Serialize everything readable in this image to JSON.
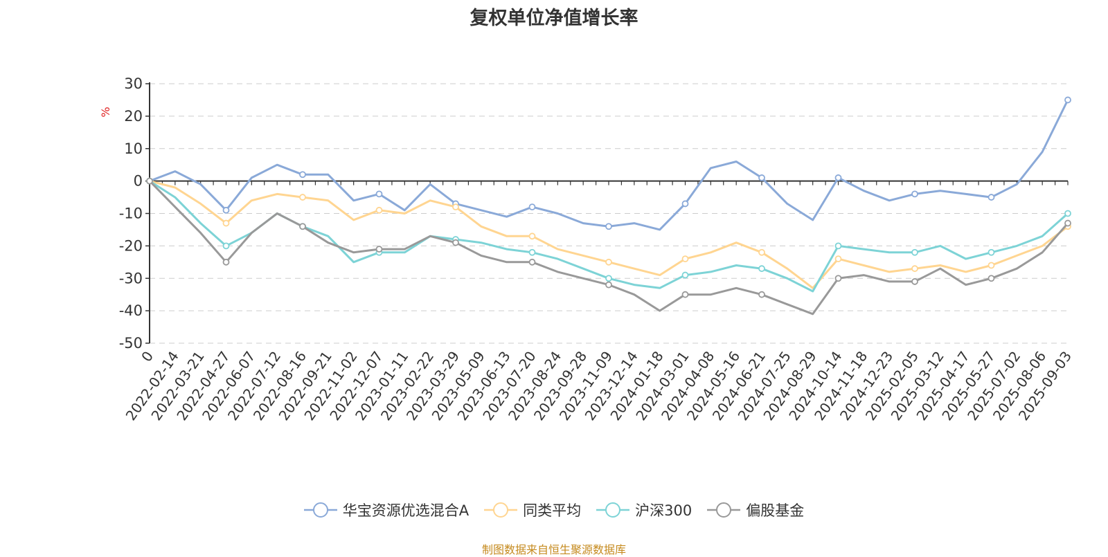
{
  "chart_data": {
    "type": "line",
    "title": "复权单位净值增长率",
    "ylabel": "%",
    "ylim": [
      -50,
      30
    ],
    "yticks": [
      30,
      20,
      10,
      0,
      -10,
      -20,
      -30,
      -40,
      -50
    ],
    "grid": true,
    "legend_position": "bottom",
    "x_tick_labels": [
      "0",
      "2022-02-14",
      "2022-03-21",
      "2022-04-27",
      "2022-06-07",
      "2022-07-12",
      "2022-08-16",
      "2022-09-21",
      "2022-11-02",
      "2022-12-07",
      "2023-01-11",
      "2023-02-22",
      "2023-03-29",
      "2023-05-09",
      "2023-06-13",
      "2023-07-20",
      "2023-08-24",
      "2023-09-28",
      "2023-11-09",
      "2023-12-14",
      "2024-01-18",
      "2024-03-01",
      "2024-04-08",
      "2024-05-16",
      "2024-06-21",
      "2024-07-25",
      "2024-08-29",
      "2024-10-14",
      "2024-11-18",
      "2024-12-23",
      "2025-02-05",
      "2025-03-12",
      "2025-04-17",
      "2025-05-27",
      "2025-07-02",
      "2025-08-06",
      "2025-09-03"
    ],
    "x": [
      "0",
      "2022-02-14",
      "2022-03-21",
      "2022-04-27",
      "2022-06-07",
      "2022-07-12",
      "2022-08-16",
      "2022-09-21",
      "2022-11-02",
      "2022-12-07",
      "2023-01-11",
      "2023-02-22",
      "2023-03-29",
      "2023-05-09",
      "2023-06-13",
      "2023-07-20",
      "2023-08-24",
      "2023-09-28",
      "2023-11-09",
      "2023-12-14",
      "2024-01-18",
      "2024-03-01",
      "2024-04-08",
      "2024-05-16",
      "2024-06-21",
      "2024-07-25",
      "2024-08-29",
      "2024-10-14",
      "2024-11-18",
      "2024-12-23",
      "2025-02-05",
      "2025-03-12",
      "2025-04-17",
      "2025-05-27",
      "2025-07-02",
      "2025-08-06",
      "2025-09-03"
    ],
    "series": [
      {
        "name": "华宝资源优选混合A",
        "color": "#8aa9d8",
        "values": [
          0,
          3,
          -1,
          -9,
          1,
          5,
          2,
          2,
          -6,
          -4,
          -9,
          -1,
          -7,
          -9,
          -11,
          -8,
          -10,
          -13,
          -14,
          -13,
          -15,
          -7,
          4,
          6,
          1,
          -7,
          -12,
          1,
          -3,
          -6,
          -4,
          -3,
          -4,
          -5,
          -1,
          9,
          25
        ]
      },
      {
        "name": "同类平均",
        "color": "#ffd591",
        "values": [
          0,
          -2,
          -7,
          -13,
          -6,
          -4,
          -5,
          -6,
          -12,
          -9,
          -10,
          -6,
          -8,
          -14,
          -17,
          -17,
          -21,
          -23,
          -25,
          -27,
          -29,
          -24,
          -22,
          -19,
          -22,
          -27,
          -33,
          -24,
          -26,
          -28,
          -27,
          -26,
          -28,
          -26,
          -23,
          -20,
          -14
        ]
      },
      {
        "name": "沪深300",
        "color": "#7dd3d6",
        "values": [
          0,
          -5,
          -13,
          -20,
          -16,
          -10,
          -14,
          -17,
          -25,
          -22,
          -22,
          -17,
          -18,
          -19,
          -21,
          -22,
          -24,
          -27,
          -30,
          -32,
          -33,
          -29,
          -28,
          -26,
          -27,
          -30,
          -34,
          -20,
          -21,
          -22,
          -22,
          -20,
          -24,
          -22,
          -20,
          -17,
          -10
        ]
      },
      {
        "name": "偏股基金",
        "color": "#999999",
        "values": [
          0,
          -8,
          -16,
          -25,
          -16,
          -10,
          -14,
          -19,
          -22,
          -21,
          -21,
          -17,
          -19,
          -23,
          -25,
          -25,
          -28,
          -30,
          -32,
          -35,
          -40,
          -35,
          -35,
          -33,
          -35,
          -38,
          -41,
          -30,
          -29,
          -31,
          -31,
          -27,
          -32,
          -30,
          -27,
          -22,
          -13
        ]
      }
    ]
  },
  "source_note": "制图数据来自恒生聚源数据库"
}
